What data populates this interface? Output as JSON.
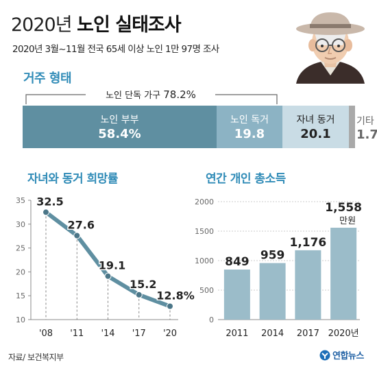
{
  "header": {
    "title_year": "2020년",
    "title_main": "노인 실태조사",
    "subtitle": "2020년 3월~11월 전국 65세 이상 노인 1만 97명 조사"
  },
  "living": {
    "section_title": "거주 형태",
    "bracket_label": "노인 단독 가구",
    "bracket_value": "78.2%",
    "segments": [
      {
        "label": "노인 부부",
        "value": "58.4%",
        "num": 58.4,
        "color": "#5f8fa1"
      },
      {
        "label": "노인 독거",
        "value": "19.8",
        "num": 19.8,
        "color": "#8cb3c4"
      },
      {
        "label": "자녀 동거",
        "value": "20.1",
        "num": 20.1,
        "color": "#c9dce5"
      },
      {
        "label": "기타",
        "value": "1.7",
        "num": 1.7,
        "color": "#a9a9a9"
      }
    ]
  },
  "chart_data": [
    {
      "type": "line",
      "title": "자녀와 동거 희망률",
      "categories": [
        "'08",
        "'11",
        "'14",
        "'17",
        "'20"
      ],
      "values": [
        32.5,
        27.6,
        19.1,
        15.2,
        12.8
      ],
      "value_labels": [
        "32.5",
        "27.6",
        "19.1",
        "15.2",
        "12.8%"
      ],
      "yticks": [
        10,
        15,
        20,
        25,
        30,
        35
      ],
      "ylim": [
        10,
        35
      ],
      "grid": false,
      "color": "#5f8fa1"
    },
    {
      "type": "bar",
      "title": "연간 개인 총소득",
      "categories": [
        "2011",
        "2014",
        "2017",
        "2020년"
      ],
      "values": [
        849,
        959,
        1176,
        1558
      ],
      "value_labels": [
        "849",
        "959",
        "1,176",
        "1,558"
      ],
      "unit_label": "만원",
      "yticks": [
        0,
        500,
        1000,
        1500,
        2000
      ],
      "ytick_labels": [
        "0",
        "500",
        "1000",
        "1500",
        "2000"
      ],
      "ylim": [
        0,
        2000
      ],
      "grid": true,
      "color": "#9bbcc9"
    }
  ],
  "footer": {
    "source": "자료/ 보건복지부",
    "logo_text": "연합뉴스"
  }
}
